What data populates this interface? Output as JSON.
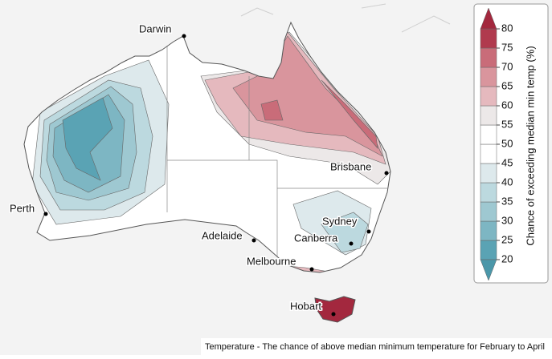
{
  "map": {
    "caption": "Temperature - The chance of above median minimum temperature for February to April",
    "cities": [
      "Darwin",
      "Brisbane",
      "Perth",
      "Sydney",
      "Adelaide",
      "Canberra",
      "Melbourne",
      "Hobart"
    ],
    "legend": {
      "title": "Chance of exceeding median min temp (%)",
      "ticks": [
        20,
        25,
        30,
        35,
        40,
        45,
        50,
        55,
        60,
        65,
        70,
        75,
        80
      ],
      "colors": [
        "#5aa3b4",
        "#7db6c3",
        "#9ec8d1",
        "#bcd9df",
        "#dde9ec",
        "#ffffff",
        "#ffffff",
        "#ece8e8",
        "#e5b9be",
        "#d9959d",
        "#c96c79",
        "#b03a4e"
      ],
      "under_color": "#4b97a9",
      "over_color": "#a3283e"
    }
  }
}
